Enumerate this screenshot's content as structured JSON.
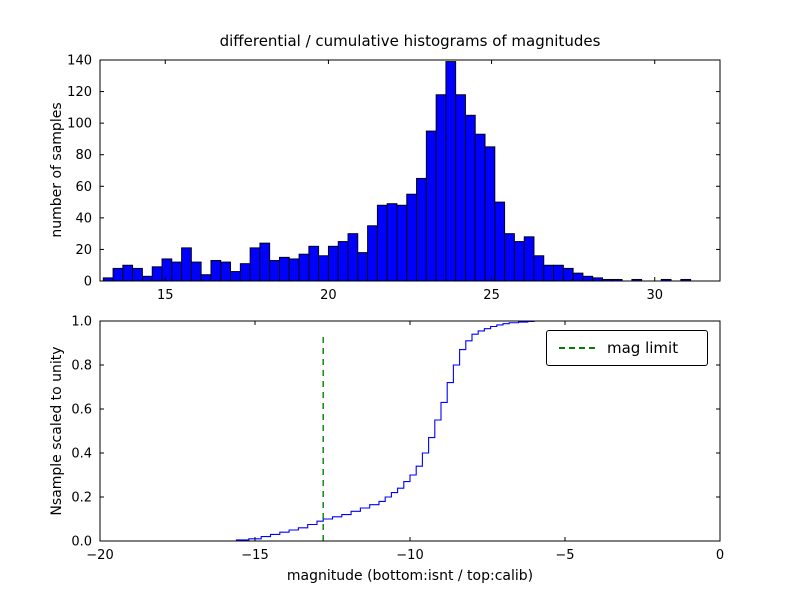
{
  "figure": {
    "background": "#ffffff"
  },
  "chart_data": [
    {
      "type": "bar",
      "title": "differential / cumulative histograms of magnitudes",
      "ylabel": "number of samples",
      "xlim": [
        13,
        32
      ],
      "ylim": [
        0,
        140
      ],
      "grid": false,
      "bar_color": "#0000ff",
      "bar_edge_color": "#000000",
      "bins_start": 13.1,
      "bin_width": 0.3,
      "xticks": [
        {
          "v": 15,
          "label": "15"
        },
        {
          "v": 20,
          "label": "20"
        },
        {
          "v": 25,
          "label": "25"
        },
        {
          "v": 30,
          "label": "30"
        }
      ],
      "yticks": [
        {
          "v": 0,
          "label": "0"
        },
        {
          "v": 20,
          "label": "20"
        },
        {
          "v": 40,
          "label": "40"
        },
        {
          "v": 60,
          "label": "60"
        },
        {
          "v": 80,
          "label": "80"
        },
        {
          "v": 100,
          "label": "100"
        },
        {
          "v": 120,
          "label": "120"
        },
        {
          "v": 140,
          "label": "140"
        }
      ],
      "values": [
        2,
        8,
        10,
        8,
        3,
        9,
        14,
        12,
        21,
        12,
        4,
        13,
        12,
        6,
        11,
        21,
        24,
        13,
        15,
        14,
        17,
        22,
        16,
        22,
        25,
        30,
        18,
        35,
        48,
        49,
        48,
        55,
        65,
        95,
        118,
        139,
        118,
        105,
        93,
        85,
        50,
        30,
        25,
        28,
        16,
        10,
        10,
        8,
        5,
        3,
        2,
        1,
        1,
        0,
        1,
        0,
        0,
        1,
        0,
        1
      ]
    },
    {
      "type": "line",
      "style": "step",
      "ylabel": "Nsample scaled to unity",
      "xlabel": "magnitude (bottom:isnt / top:calib)",
      "xlim": [
        -20,
        0
      ],
      "ylim": [
        0,
        1
      ],
      "grid": false,
      "line_color": "#0000ff",
      "xticks": [
        {
          "v": -20,
          "label": "−20"
        },
        {
          "v": -15,
          "label": "−15"
        },
        {
          "v": -10,
          "label": "−10"
        },
        {
          "v": -5,
          "label": "−5"
        },
        {
          "v": 0,
          "label": "0"
        }
      ],
      "yticks": [
        {
          "v": 0,
          "label": "0.0"
        },
        {
          "v": 0.2,
          "label": "0.2"
        },
        {
          "v": 0.4,
          "label": "0.4"
        },
        {
          "v": 0.6,
          "label": "0.6"
        },
        {
          "v": 0.8,
          "label": "0.8"
        },
        {
          "v": 1,
          "label": "1.0"
        }
      ],
      "points": [
        [
          -16.0,
          0.0
        ],
        [
          -15.6,
          0.005
        ],
        [
          -15.2,
          0.01
        ],
        [
          -14.8,
          0.02
        ],
        [
          -14.5,
          0.03
        ],
        [
          -14.2,
          0.04
        ],
        [
          -13.9,
          0.05
        ],
        [
          -13.6,
          0.06
        ],
        [
          -13.3,
          0.075
        ],
        [
          -13.0,
          0.09
        ],
        [
          -12.8,
          0.1
        ],
        [
          -12.5,
          0.11
        ],
        [
          -12.2,
          0.12
        ],
        [
          -11.9,
          0.135
        ],
        [
          -11.6,
          0.15
        ],
        [
          -11.3,
          0.165
        ],
        [
          -11.0,
          0.18
        ],
        [
          -10.8,
          0.2
        ],
        [
          -10.6,
          0.22
        ],
        [
          -10.4,
          0.24
        ],
        [
          -10.2,
          0.27
        ],
        [
          -10.0,
          0.3
        ],
        [
          -9.8,
          0.34
        ],
        [
          -9.6,
          0.4
        ],
        [
          -9.4,
          0.47
        ],
        [
          -9.2,
          0.55
        ],
        [
          -9.0,
          0.63
        ],
        [
          -8.8,
          0.72
        ],
        [
          -8.6,
          0.8
        ],
        [
          -8.4,
          0.87
        ],
        [
          -8.2,
          0.91
        ],
        [
          -8.0,
          0.94
        ],
        [
          -7.8,
          0.955
        ],
        [
          -7.6,
          0.965
        ],
        [
          -7.4,
          0.975
        ],
        [
          -7.2,
          0.982
        ],
        [
          -7.0,
          0.988
        ],
        [
          -6.8,
          0.992
        ],
        [
          -6.5,
          0.995
        ],
        [
          -6.2,
          0.998
        ],
        [
          -6.0,
          1.0
        ],
        [
          0.0,
          1.0
        ]
      ],
      "mag_limit": {
        "x": -12.8,
        "color": "#008000",
        "line_style": "dashed",
        "label": "mag limit"
      },
      "legend": {
        "position": "upper right",
        "entries": [
          {
            "label": "mag limit",
            "color": "#008000",
            "dashed": true
          }
        ]
      }
    }
  ]
}
